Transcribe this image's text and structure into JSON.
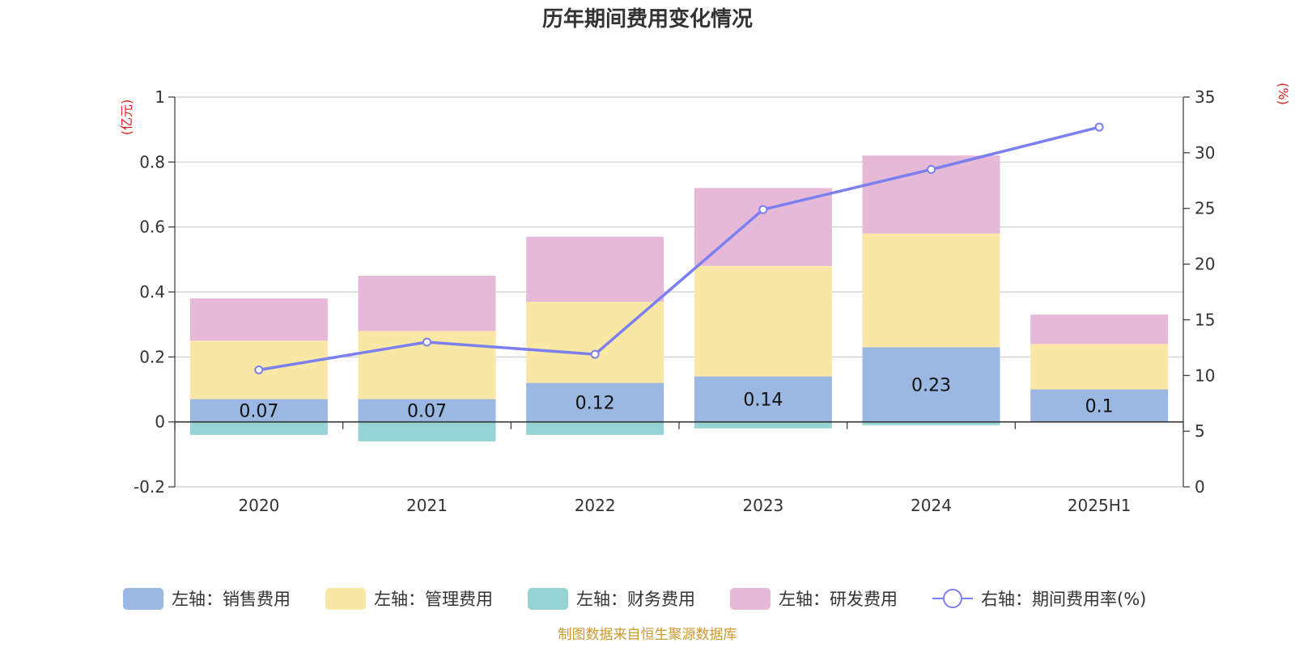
{
  "chart_data": {
    "type": "bar",
    "stacked": true,
    "title": "历年期间费用变化情况",
    "categories": [
      "2020",
      "2021",
      "2022",
      "2023",
      "2024",
      "2025H1"
    ],
    "left_axis": {
      "unit": "(亿元)",
      "ylim": [
        -0.2,
        1.0
      ],
      "ticks": [
        "1",
        "0.8",
        "0.6",
        "0.4",
        "0.2",
        "0",
        "-0.2"
      ],
      "tick_values": [
        1,
        0.8,
        0.6,
        0.4,
        0.2,
        0,
        -0.2
      ]
    },
    "right_axis": {
      "unit": "(%)",
      "ylim": [
        0,
        35
      ],
      "ticks": [
        "35",
        "30",
        "25",
        "20",
        "15",
        "10",
        "5",
        "0"
      ],
      "tick_values": [
        35,
        30,
        25,
        20,
        15,
        10,
        5,
        0
      ]
    },
    "grid": true,
    "legend_position": "bottom",
    "series": [
      {
        "name": "左轴：销售费用",
        "axis": "left",
        "color": "#9bb8e3",
        "values": [
          0.07,
          0.07,
          0.12,
          0.14,
          0.23,
          0.1
        ],
        "labels": [
          "0.07",
          "0.07",
          "0.12",
          "0.14",
          "0.23",
          "0.1"
        ]
      },
      {
        "name": "左轴：管理费用",
        "axis": "left",
        "color": "#f8e7a5",
        "values": [
          0.18,
          0.21,
          0.25,
          0.34,
          0.35,
          0.14
        ]
      },
      {
        "name": "左轴：财务费用",
        "axis": "left",
        "color": "#96d3d3",
        "values": [
          -0.04,
          -0.06,
          -0.04,
          -0.02,
          -0.01,
          0.0
        ]
      },
      {
        "name": "左轴：研发费用",
        "axis": "left",
        "color": "#e6b9d9",
        "values": [
          0.13,
          0.17,
          0.2,
          0.24,
          0.24,
          0.09
        ]
      },
      {
        "name": "右轴：期间费用率(%)",
        "axis": "right",
        "type": "line",
        "color": "#7b7ff0",
        "values": [
          10.5,
          13.0,
          11.9,
          24.9,
          28.5,
          32.3
        ]
      }
    ],
    "source_note": "制图数据来自恒生聚源数据库"
  },
  "colors": {
    "axis_unit": "#e02020",
    "footer": "#c99a2e"
  }
}
